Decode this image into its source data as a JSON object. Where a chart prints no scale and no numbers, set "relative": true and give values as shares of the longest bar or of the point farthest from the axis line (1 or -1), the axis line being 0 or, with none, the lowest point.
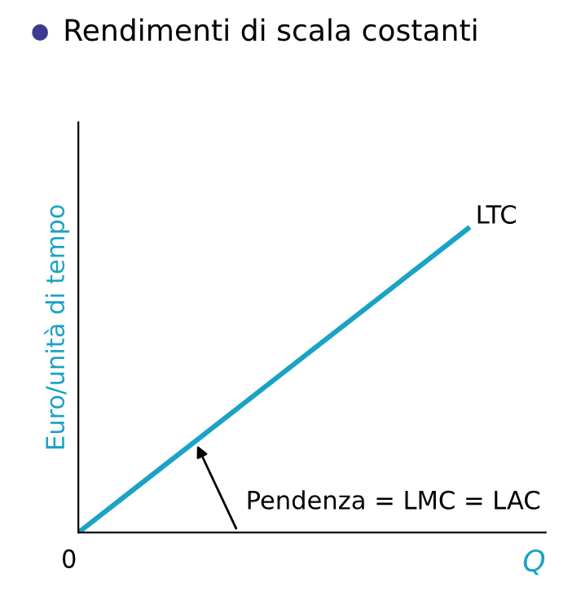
{
  "chart_data": {
    "type": "line",
    "title": "Rendimenti di scala costanti",
    "xlabel": "Q",
    "ylabel": "Euro/unità di tempo",
    "relative": true,
    "categories": [
      null,
      null,
      null,
      null,
      null,
      null,
      null
    ],
    "series": [
      {
        "name": "LTC",
        "color": "#1aa3c4",
        "values": [
          0,
          0.2,
          0.4,
          0.6,
          0.8,
          1,
          null
        ]
      }
    ],
    "annotations": [
      "0",
      "Pendenza = LMC = LAC"
    ],
    "marker": "none",
    "line_style": "solid"
  }
}
